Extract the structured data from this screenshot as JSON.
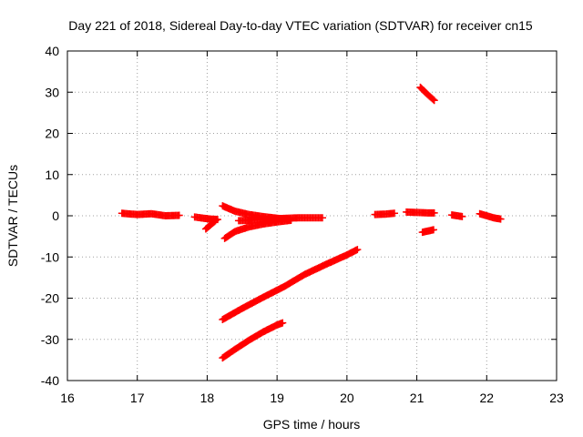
{
  "chart_data": {
    "type": "scatter",
    "title": "Day 221 of 2018, Sidereal Day-to-day VTEC variation (SDTVAR) for receiver cn15",
    "xlabel": "GPS time / hours",
    "ylabel": "SDTVAR / TECUs",
    "xlim": [
      16,
      23
    ],
    "ylim": [
      -40,
      40
    ],
    "x_ticks": [
      "16",
      "17",
      "18",
      "19",
      "20",
      "21",
      "22",
      "23"
    ],
    "y_ticks": [
      "-40",
      "-30",
      "-20",
      "-10",
      "0",
      "10",
      "20",
      "30",
      "40"
    ],
    "grid": true,
    "legend": "none",
    "marker": "+",
    "marker_color": "#ff0000",
    "series": [
      {
        "segments": [
          {
            "x": [
              16.78,
              17.0,
              17.2,
              17.4,
              17.6
            ],
            "y": [
              0.6,
              0.3,
              0.5,
              0.0,
              0.1
            ]
          },
          {
            "x": [
              17.82,
              17.95,
              18.05,
              18.15
            ],
            "y": [
              -0.3,
              -0.6,
              -0.8,
              -0.9
            ]
          },
          {
            "x": [
              17.98,
              18.05,
              18.12
            ],
            "y": [
              -3.2,
              -2.2,
              -1.2
            ]
          },
          {
            "x": [
              18.22,
              18.4,
              18.6,
              18.8,
              19.0,
              19.2
            ],
            "y": [
              2.4,
              1.1,
              0.3,
              -0.2,
              -0.6,
              -0.9
            ]
          },
          {
            "x": [
              18.45,
              18.7,
              19.0,
              19.3,
              19.65
            ],
            "y": [
              -1.2,
              -1.0,
              -0.7,
              -0.5,
              -0.5
            ]
          },
          {
            "x": [
              18.25,
              18.4,
              18.6,
              18.8,
              19.0,
              19.2
            ],
            "y": [
              -5.5,
              -3.8,
              -2.7,
              -2.0,
              -1.5,
              -1.1
            ]
          },
          {
            "x": [
              18.22,
              18.5,
              18.8,
              19.1,
              19.4,
              19.7,
              20.0,
              20.15
            ],
            "y": [
              -25.2,
              -22.5,
              -19.8,
              -17.2,
              -14.2,
              -11.8,
              -9.5,
              -8.2
            ]
          },
          {
            "x": [
              18.22,
              18.4,
              18.6,
              18.8,
              19.0,
              19.08
            ],
            "y": [
              -34.5,
              -32.4,
              -30.2,
              -28.2,
              -26.5,
              -26.0
            ]
          },
          {
            "x": [
              20.4,
              20.55,
              20.68
            ],
            "y": [
              0.3,
              0.4,
              0.6
            ]
          },
          {
            "x": [
              20.85,
              21.0,
              21.15,
              21.25
            ],
            "y": [
              0.9,
              0.8,
              0.7,
              0.7
            ]
          },
          {
            "x": [
              21.05,
              21.15,
              21.25
            ],
            "y": [
              31.2,
              29.5,
              28.0
            ]
          },
          {
            "x": [
              21.08,
              21.16,
              21.24
            ],
            "y": [
              -4.0,
              -3.7,
              -3.4
            ]
          },
          {
            "x": [
              21.5,
              21.58,
              21.65
            ],
            "y": [
              0.2,
              0.0,
              -0.2
            ]
          },
          {
            "x": [
              21.9,
              22.0,
              22.1,
              22.2
            ],
            "y": [
              0.5,
              0.0,
              -0.5,
              -0.8
            ]
          }
        ]
      }
    ]
  }
}
